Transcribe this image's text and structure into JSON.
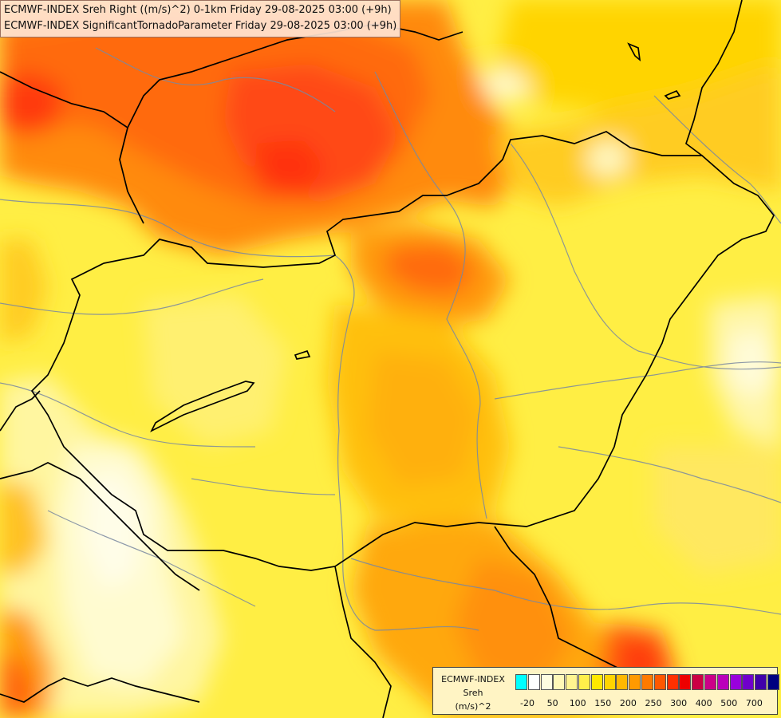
{
  "map": {
    "title_line_1": "ECMWF-INDEX Sreh Right ((m/s)^2) 0-1km Friday 29-08-2025 03:00 (+9h)",
    "title_line_2": "ECMWF-INDEX SignificantTornadoParameter Friday 29-08-2025 03:00 (+9h)",
    "background_color": "#ffee55"
  },
  "legend": {
    "line_1": "ECMWF-INDEX",
    "line_2": "Sreh",
    "line_3": "(m/s)^2",
    "ticks": [
      "-20",
      "50",
      "100",
      "150",
      "200",
      "250",
      "300",
      "400",
      "500",
      "700"
    ],
    "colors": [
      "#00ffff",
      "#ffffff",
      "#fffde0",
      "#fff8b8",
      "#fff490",
      "#ffef4a",
      "#ffe800",
      "#ffd400",
      "#ffb800",
      "#ff9a00",
      "#ff7a00",
      "#ff5800",
      "#ff3000",
      "#ee0000",
      "#cc0044",
      "#cc0088",
      "#bb00bb",
      "#9900dd",
      "#7000cc",
      "#4000aa",
      "#000080"
    ]
  }
}
